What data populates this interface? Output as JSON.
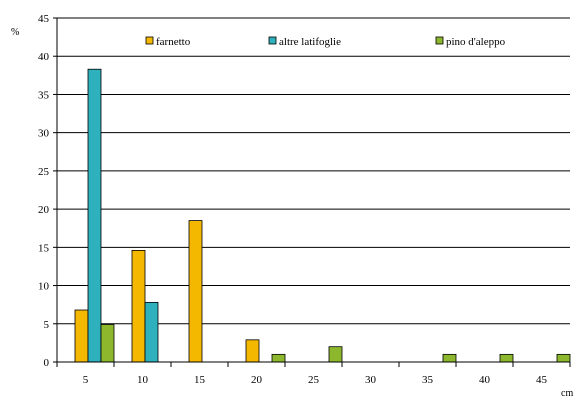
{
  "chart_data": {
    "type": "bar",
    "title": "",
    "ylabel": "%",
    "xlabel": "cm",
    "ylim": [
      0,
      45
    ],
    "yticks": [
      0,
      5,
      10,
      15,
      20,
      25,
      30,
      35,
      40,
      45
    ],
    "grid": true,
    "legend_position": "top",
    "categories": [
      "5",
      "10",
      "15",
      "20",
      "25",
      "30",
      "35",
      "40",
      "45"
    ],
    "series": [
      {
        "name": "farnetto",
        "color": "#F5B800",
        "values": [
          6.8,
          14.6,
          18.5,
          2.9,
          0,
          0,
          0,
          0,
          0
        ]
      },
      {
        "name": "altre latifoglie",
        "color": "#2EB1BC",
        "values": [
          38.3,
          7.8,
          0,
          0,
          0,
          0,
          0,
          0,
          0
        ]
      },
      {
        "name": "pino d'aleppo",
        "color": "#8DB82E",
        "values": [
          4.9,
          0,
          0,
          1.0,
          2.0,
          0,
          1.0,
          1.0,
          1.0
        ]
      }
    ]
  }
}
